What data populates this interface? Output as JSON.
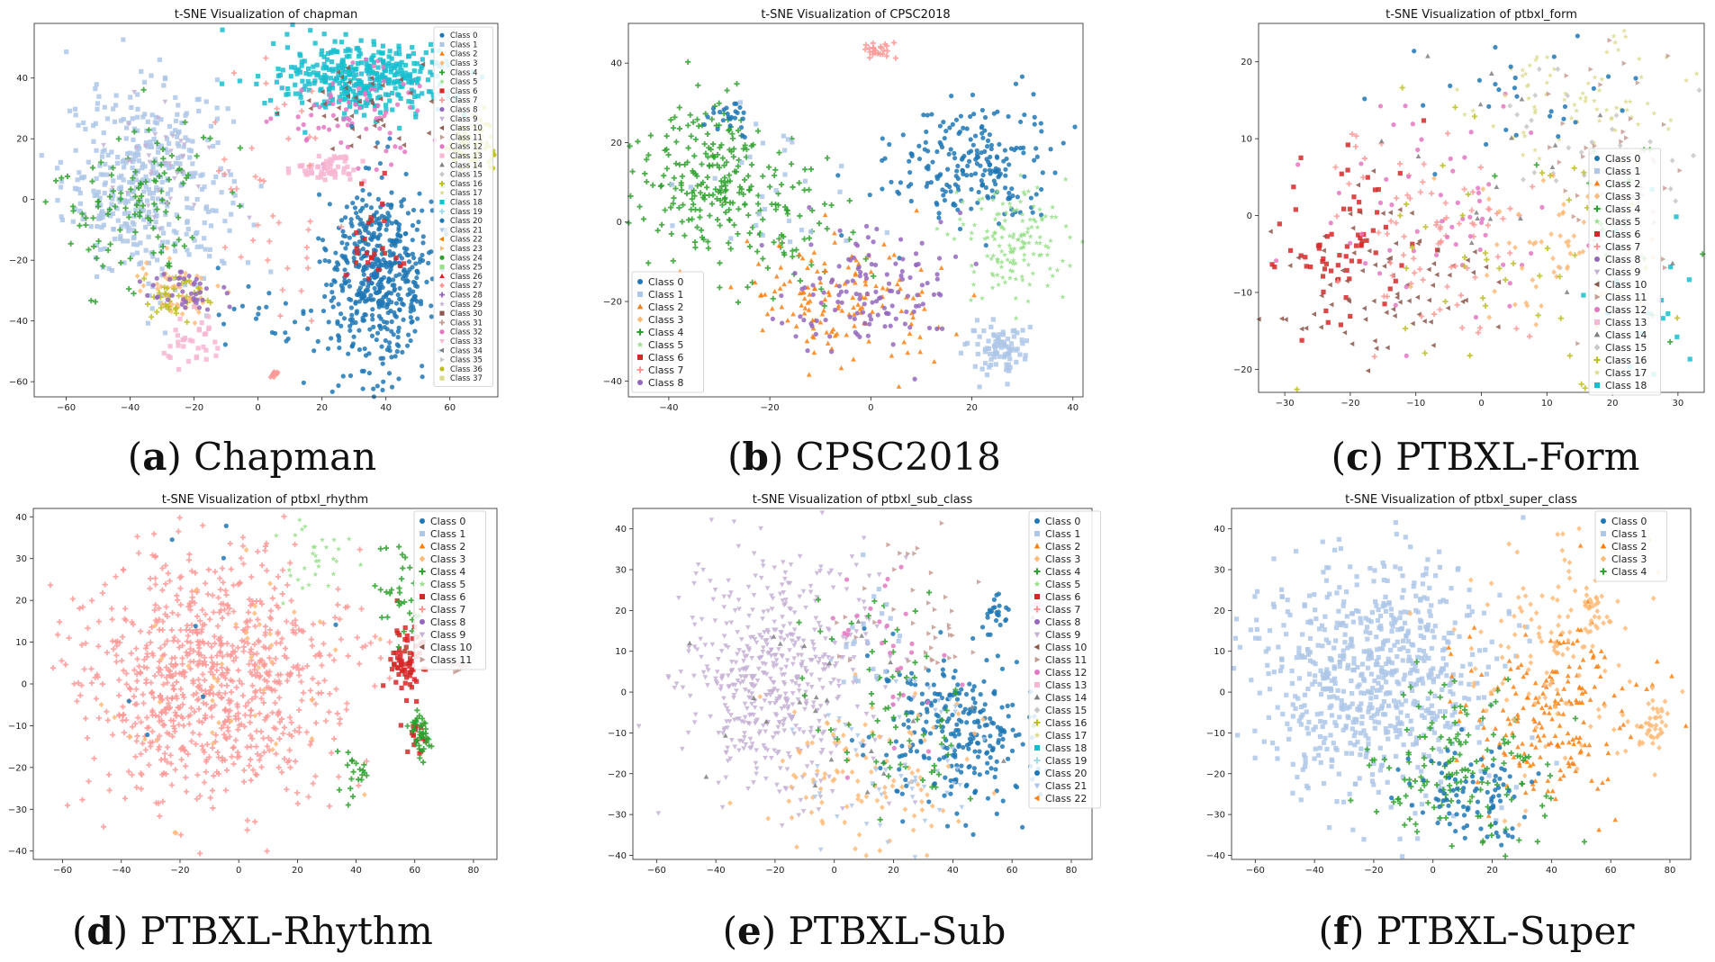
{
  "figure": {
    "palette": [
      "#1f77b4",
      "#aec7e8",
      "#ff7f0e",
      "#ffbb78",
      "#2ca02c",
      "#98df8a",
      "#d62728",
      "#ff9896",
      "#9467bd",
      "#c5b0d5",
      "#8c564b",
      "#c49c94",
      "#e377c2",
      "#f7b6d2",
      "#7f7f7f",
      "#c7c7c7",
      "#bcbd22",
      "#dbdb8d",
      "#17becf",
      "#9edae5"
    ],
    "marker_cycle": [
      "circle",
      "square",
      "triangle-up",
      "diamond",
      "plus",
      "star",
      "square",
      "plus",
      "circle",
      "triangle-down",
      "triangle-left",
      "triangle-right"
    ]
  },
  "chart_data": [
    {
      "type": "scatter",
      "title": "t-SNE Visualization of chapman",
      "caption_letter": "a",
      "caption_text": "Chapman",
      "xlim": [
        -70,
        75
      ],
      "ylim": [
        -65,
        58
      ],
      "xticks": [
        -60,
        -40,
        -20,
        0,
        20,
        40,
        60
      ],
      "yticks": [
        -60,
        -40,
        -20,
        0,
        20,
        40
      ],
      "legend_position": "upper-right-outside",
      "classes": [
        "Class 0",
        "Class 1",
        "Class 2",
        "Class 3",
        "Class 4",
        "Class 5",
        "Class 6",
        "Class 7",
        "Class 8",
        "Class 9",
        "Class 10",
        "Class 11",
        "Class 12",
        "Class 13",
        "Class 14",
        "Class 15",
        "Class 16",
        "Class 17",
        "Class 18",
        "Class 19",
        "Class 20",
        "Class 21",
        "Class 22",
        "Class 23",
        "Class 24",
        "Class 25",
        "Class 26",
        "Class 27",
        "Class 28",
        "Class 29",
        "Class 30",
        "Class 31",
        "Class 32",
        "Class 33",
        "Class 34",
        "Class 35",
        "Class 36",
        "Class 37"
      ],
      "clusters": [
        {
          "class": 1,
          "cx": -35,
          "cy": 5,
          "sx": 13,
          "sy": 16,
          "n": 420
        },
        {
          "class": 4,
          "cx": -38,
          "cy": 0,
          "sx": 12,
          "sy": 15,
          "n": 110
        },
        {
          "class": 9,
          "cx": -32,
          "cy": 15,
          "sx": 10,
          "sy": 10,
          "n": 40
        },
        {
          "class": 3,
          "cx": -25,
          "cy": -30,
          "sx": 6,
          "sy": 5,
          "n": 60
        },
        {
          "class": 16,
          "cx": -25,
          "cy": -32,
          "sx": 6,
          "sy": 4,
          "n": 40
        },
        {
          "class": 8,
          "cx": -22,
          "cy": -30,
          "sx": 7,
          "sy": 4,
          "n": 40
        },
        {
          "class": 13,
          "cx": -20,
          "cy": -48,
          "sx": 5,
          "sy": 4,
          "n": 35
        },
        {
          "class": 0,
          "cx": 5,
          "cy": -40,
          "sx": 10,
          "sy": 8,
          "n": 25
        },
        {
          "class": 18,
          "cx": 33,
          "cy": 40,
          "sx": 14,
          "sy": 6,
          "n": 380
        },
        {
          "class": 12,
          "cx": 30,
          "cy": 28,
          "sx": 12,
          "sy": 8,
          "n": 70
        },
        {
          "class": 10,
          "cx": 35,
          "cy": 32,
          "sx": 12,
          "sy": 8,
          "n": 40
        },
        {
          "class": 13,
          "cx": 22,
          "cy": 10,
          "sx": 5,
          "sy": 2,
          "n": 60
        },
        {
          "class": 20,
          "cx": 38,
          "cy": -25,
          "sx": 8,
          "sy": 15,
          "n": 520
        },
        {
          "class": 6,
          "cx": 35,
          "cy": -15,
          "sx": 8,
          "sy": 10,
          "n": 25
        },
        {
          "class": 36,
          "cx": 67,
          "cy": 18,
          "sx": 4,
          "sy": 5,
          "n": 60
        },
        {
          "class": 27,
          "cx": 5,
          "cy": -58,
          "sx": 1,
          "sy": 1,
          "n": 12
        },
        {
          "class": 7,
          "cx": 5,
          "cy": 0,
          "sx": 12,
          "sy": 20,
          "n": 40
        }
      ]
    },
    {
      "type": "scatter",
      "title": "t-SNE Visualization of CPSC2018",
      "caption_letter": "b",
      "caption_text": "CPSC2018",
      "xlim": [
        -48,
        42
      ],
      "ylim": [
        -44,
        50
      ],
      "xticks": [
        -40,
        -20,
        0,
        20,
        40
      ],
      "yticks": [
        -40,
        -20,
        0,
        20,
        40
      ],
      "legend_position": "lower-left",
      "classes": [
        "Class 0",
        "Class 1",
        "Class 2",
        "Class 3",
        "Class 4",
        "Class 5",
        "Class 6",
        "Class 7",
        "Class 8"
      ],
      "clusters": [
        {
          "class": 0,
          "cx": 20,
          "cy": 15,
          "sx": 8,
          "sy": 8,
          "n": 220
        },
        {
          "class": 4,
          "cx": -33,
          "cy": 12,
          "sx": 7,
          "sy": 9,
          "n": 200
        },
        {
          "class": 4,
          "cx": -20,
          "cy": 0,
          "sx": 8,
          "sy": 10,
          "n": 80
        },
        {
          "class": 1,
          "cx": 25,
          "cy": -32,
          "sx": 3,
          "sy": 3,
          "n": 90
        },
        {
          "class": 5,
          "cx": 28,
          "cy": -5,
          "sx": 6,
          "sy": 7,
          "n": 150
        },
        {
          "class": 2,
          "cx": -5,
          "cy": -20,
          "sx": 10,
          "sy": 8,
          "n": 140
        },
        {
          "class": 8,
          "cx": 0,
          "cy": -18,
          "sx": 9,
          "sy": 8,
          "n": 130
        },
        {
          "class": 7,
          "cx": 2,
          "cy": 43,
          "sx": 2,
          "sy": 1.5,
          "n": 25
        },
        {
          "class": 0,
          "cx": -28,
          "cy": 26,
          "sx": 3,
          "sy": 2,
          "n": 25
        },
        {
          "class": 1,
          "cx": -20,
          "cy": 10,
          "sx": 10,
          "sy": 10,
          "n": 30
        }
      ]
    },
    {
      "type": "scatter",
      "title": "t-SNE Visualization of ptbxl_form",
      "caption_letter": "c",
      "caption_text": "PTBXL-Form",
      "xlim": [
        -34,
        34
      ],
      "ylim": [
        -23,
        25
      ],
      "xticks": [
        -30,
        -20,
        -10,
        0,
        10,
        20,
        30
      ],
      "yticks": [
        -20,
        -10,
        0,
        10,
        20
      ],
      "legend_position": "right",
      "classes": [
        "Class 0",
        "Class 1",
        "Class 2",
        "Class 3",
        "Class 4",
        "Class 5",
        "Class 6",
        "Class 7",
        "Class 8",
        "Class 9",
        "Class 10",
        "Class 11",
        "Class 12",
        "Class 13",
        "Class 14",
        "Class 15",
        "Class 16",
        "Class 17",
        "Class 18"
      ],
      "clusters": [
        {
          "class": 6,
          "cx": -20,
          "cy": -3,
          "sx": 6,
          "sy": 6,
          "n": 70
        },
        {
          "class": 10,
          "cx": -15,
          "cy": -10,
          "sx": 8,
          "sy": 6,
          "n": 80
        },
        {
          "class": 7,
          "cx": -8,
          "cy": -3,
          "sx": 8,
          "sy": 7,
          "n": 80
        },
        {
          "class": 12,
          "cx": -5,
          "cy": 0,
          "sx": 10,
          "sy": 8,
          "n": 60
        },
        {
          "class": 17,
          "cx": 15,
          "cy": 15,
          "sx": 8,
          "sy": 5,
          "n": 80
        },
        {
          "class": 15,
          "cx": 18,
          "cy": 8,
          "sx": 7,
          "sy": 6,
          "n": 40
        },
        {
          "class": 3,
          "cx": 10,
          "cy": -5,
          "sx": 8,
          "sy": 5,
          "n": 60
        },
        {
          "class": 0,
          "cx": 5,
          "cy": 15,
          "sx": 8,
          "sy": 5,
          "n": 30
        },
        {
          "class": 11,
          "cx": 20,
          "cy": 5,
          "sx": 6,
          "sy": 8,
          "n": 50
        },
        {
          "class": 4,
          "cx": 20,
          "cy": 0,
          "sx": 8,
          "sy": 8,
          "n": 20
        },
        {
          "class": 16,
          "cx": 0,
          "cy": -5,
          "sx": 12,
          "sy": 10,
          "n": 50
        },
        {
          "class": 18,
          "cx": 25,
          "cy": -10,
          "sx": 5,
          "sy": 6,
          "n": 20
        },
        {
          "class": 14,
          "cx": 0,
          "cy": 5,
          "sx": 14,
          "sy": 10,
          "n": 20
        }
      ]
    },
    {
      "type": "scatter",
      "title": "t-SNE Visualization of ptbxl_rhythm",
      "caption_letter": "d",
      "caption_text": "PTBXL-Rhythm",
      "xlim": [
        -70,
        88
      ],
      "ylim": [
        -42,
        42
      ],
      "xticks": [
        -60,
        -40,
        -20,
        0,
        20,
        40,
        60,
        80
      ],
      "yticks": [
        -40,
        -30,
        -20,
        -10,
        0,
        10,
        20,
        30,
        40
      ],
      "legend_position": "upper-right",
      "classes": [
        "Class 0",
        "Class 1",
        "Class 2",
        "Class 3",
        "Class 4",
        "Class 5",
        "Class 6",
        "Class 7",
        "Class 8",
        "Class 9",
        "Class 10",
        "Class 11"
      ],
      "clusters": [
        {
          "class": 7,
          "cx": -10,
          "cy": 0,
          "sx": 22,
          "sy": 15,
          "n": 850
        },
        {
          "class": 3,
          "cx": -5,
          "cy": 5,
          "sx": 22,
          "sy": 15,
          "n": 45
        },
        {
          "class": 6,
          "cx": 56,
          "cy": 5,
          "sx": 3,
          "sy": 4,
          "n": 70
        },
        {
          "class": 6,
          "cx": 60,
          "cy": -12,
          "sx": 2,
          "sy": 3,
          "n": 15
        },
        {
          "class": 4,
          "cx": 62,
          "cy": -12,
          "sx": 2,
          "sy": 3,
          "n": 40
        },
        {
          "class": 4,
          "cx": 55,
          "cy": 22,
          "sx": 4,
          "sy": 6,
          "n": 30
        },
        {
          "class": 11,
          "cx": 75,
          "cy": 4,
          "sx": 1.5,
          "sy": 1,
          "n": 15
        },
        {
          "class": 5,
          "cx": 25,
          "cy": 30,
          "sx": 6,
          "sy": 5,
          "n": 30
        },
        {
          "class": 4,
          "cx": 40,
          "cy": -22,
          "sx": 3,
          "sy": 3,
          "n": 20
        },
        {
          "class": 0,
          "cx": -20,
          "cy": 15,
          "sx": 25,
          "sy": 15,
          "n": 8
        }
      ]
    },
    {
      "type": "scatter",
      "title": "t-SNE Visualization of ptbxl_sub_class",
      "caption_letter": "e",
      "caption_text": "PTBXL-Sub",
      "xlim": [
        -68,
        87
      ],
      "ylim": [
        -41,
        45
      ],
      "xticks": [
        -60,
        -40,
        -20,
        0,
        20,
        40,
        60,
        80
      ],
      "yticks": [
        -40,
        -30,
        -20,
        -10,
        0,
        10,
        20,
        30,
        40
      ],
      "legend_position": "upper-right",
      "classes": [
        "Class 0",
        "Class 1",
        "Class 2",
        "Class 3",
        "Class 4",
        "Class 5",
        "Class 6",
        "Class 7",
        "Class 8",
        "Class 9",
        "Class 10",
        "Class 11",
        "Class 12",
        "Class 13",
        "Class 14",
        "Class 15",
        "Class 16",
        "Class 17",
        "Class 18",
        "Class 19",
        "Class 20",
        "Class 21",
        "Class 22"
      ],
      "clusters": [
        {
          "class": 9,
          "cx": -20,
          "cy": 5,
          "sx": 16,
          "sy": 15,
          "n": 520
        },
        {
          "class": 0,
          "cx": 40,
          "cy": -10,
          "sx": 12,
          "sy": 10,
          "n": 260
        },
        {
          "class": 3,
          "cx": 10,
          "cy": -20,
          "sx": 18,
          "sy": 10,
          "n": 110
        },
        {
          "class": 4,
          "cx": 20,
          "cy": -5,
          "sx": 15,
          "sy": 12,
          "n": 70
        },
        {
          "class": 21,
          "cx": 25,
          "cy": -15,
          "sx": 15,
          "sy": 12,
          "n": 60
        },
        {
          "class": 11,
          "cx": 30,
          "cy": 20,
          "sx": 10,
          "sy": 10,
          "n": 40
        },
        {
          "class": 12,
          "cx": 20,
          "cy": 10,
          "sx": 15,
          "sy": 15,
          "n": 30
        },
        {
          "class": 14,
          "cx": 0,
          "cy": -10,
          "sx": 25,
          "sy": 15,
          "n": 25
        },
        {
          "class": 0,
          "cx": 55,
          "cy": 20,
          "sx": 3,
          "sy": 3,
          "n": 25
        },
        {
          "class": 1,
          "cx": 10,
          "cy": 15,
          "sx": 6,
          "sy": 8,
          "n": 20
        }
      ]
    },
    {
      "type": "scatter",
      "title": "t-SNE Visualization of ptbxl_super_class",
      "caption_letter": "f",
      "caption_text": "PTBXL-Super",
      "xlim": [
        -68,
        87
      ],
      "ylim": [
        -41,
        45
      ],
      "xticks": [
        -60,
        -40,
        -20,
        0,
        20,
        40,
        60,
        80
      ],
      "yticks": [
        -40,
        -30,
        -20,
        -10,
        0,
        10,
        20,
        30,
        40
      ],
      "legend_position": "upper-left",
      "classes": [
        "Class 0",
        "Class 1",
        "Class 2",
        "Class 3",
        "Class 4"
      ],
      "clusters": [
        {
          "class": 1,
          "cx": -22,
          "cy": 5,
          "sx": 20,
          "sy": 15,
          "n": 700
        },
        {
          "class": 2,
          "cx": 40,
          "cy": -5,
          "sx": 15,
          "sy": 12,
          "n": 200
        },
        {
          "class": 4,
          "cx": 10,
          "cy": -20,
          "sx": 15,
          "sy": 10,
          "n": 150
        },
        {
          "class": 0,
          "cx": 15,
          "cy": -25,
          "sx": 10,
          "sy": 6,
          "n": 90
        },
        {
          "class": 3,
          "cx": 40,
          "cy": 10,
          "sx": 15,
          "sy": 15,
          "n": 120
        },
        {
          "class": 3,
          "cx": 75,
          "cy": -8,
          "sx": 3,
          "sy": 3,
          "n": 40
        },
        {
          "class": 3,
          "cx": 55,
          "cy": 20,
          "sx": 3,
          "sy": 3,
          "n": 30
        }
      ]
    }
  ]
}
